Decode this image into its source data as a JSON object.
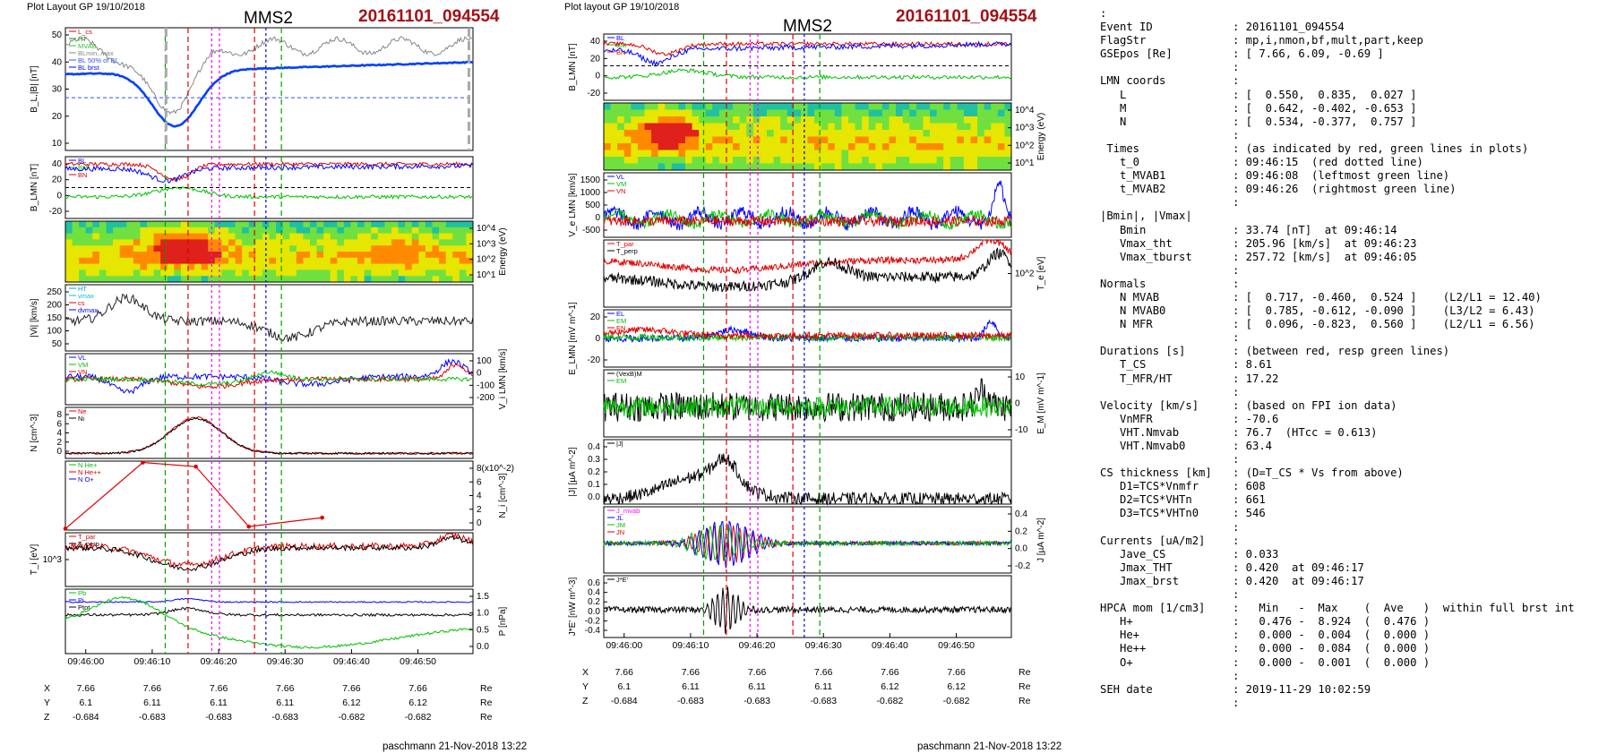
{
  "left": {
    "header_layout": "Plot Layout GP 19/10/2018",
    "spacecraft": "MMS2",
    "event": "20161101_094554",
    "footer": "paschmann 21-Nov-2018 13:22",
    "time_labels": [
      "09:46:00",
      "09:46:10",
      "09:46:20",
      "09:46:30",
      "09:46:40",
      "09:46:50"
    ],
    "ephem": [
      {
        "name": "X",
        "values": [
          "7.66",
          "7.66",
          "7.66",
          "7.66",
          "7.66",
          "7.66"
        ],
        "unit": "Re"
      },
      {
        "name": "Y",
        "values": [
          "6.1",
          "6.11",
          "6.11",
          "6.11",
          "6.12",
          "6.12"
        ],
        "unit": "Re"
      },
      {
        "name": "Z",
        "values": [
          "-0.684",
          "-0.683",
          "-0.683",
          "-0.683",
          "-0.682",
          "-0.682"
        ],
        "unit": "Re"
      }
    ],
    "panels": [
      {
        "id": "b",
        "ylabel": "B_L,|B| [nT]",
        "yticks": [
          "50",
          "40",
          "30",
          "20",
          "10"
        ],
        "legend": [
          "L_cs",
          "HT",
          "MVAB",
          "BLmin..max",
          "BL 50% of BL",
          "BL brst"
        ],
        "legend_colors": [
          "#e00000",
          "#00a000",
          "#30c030",
          "#888888",
          "#3050ff",
          "#0000ff"
        ]
      },
      {
        "id": "blmn",
        "ylabel": "B_LMN [nT]",
        "yticks": [
          "40",
          "20",
          "0",
          "-20"
        ],
        "legend": [
          "BL",
          "BM",
          "BN"
        ],
        "legend_colors": [
          "#0000ff",
          "#00c000",
          "#e00000"
        ]
      },
      {
        "id": "spec",
        "ylabel": "Energy (eV)",
        "yticks": [
          "10^4",
          "10^3",
          "10^2",
          "10^1"
        ]
      },
      {
        "id": "vi",
        "ylabel": "|Vi| [km/s]",
        "yticks": [
          "250",
          "200",
          "150",
          "100",
          "50"
        ],
        "legend": [
          "HT",
          "vmax",
          "cs",
          "dvmax"
        ],
        "legend_colors": [
          "#00a0e0",
          "#00c0e0",
          "#e00000",
          "#0000ff"
        ]
      },
      {
        "id": "vilmn",
        "ylabel": "V_i LMN [km/s]",
        "yticks": [
          "100",
          "0",
          "-100",
          "-200"
        ],
        "legend": [
          "VL",
          "VM",
          "VN"
        ],
        "legend_colors": [
          "#0000ff",
          "#00c000",
          "#e00000"
        ]
      },
      {
        "id": "n",
        "ylabel": "N [cm^-3]",
        "yticks": [
          "8",
          "6",
          "4",
          "2",
          "0"
        ],
        "legend": [
          "Ne",
          "Ni"
        ],
        "legend_colors": [
          "#e00000",
          "#000000"
        ]
      },
      {
        "id": "nhpca",
        "ylabel": "N_i [cm^-3]",
        "yticks": [
          "8(x10^-2)",
          "6",
          "4",
          "2",
          "0"
        ],
        "legend": [
          "N He+",
          "N He++",
          "N O+"
        ],
        "legend_colors": [
          "#00c000",
          "#e00000",
          "#0000ff"
        ]
      },
      {
        "id": "ti",
        "ylabel": "T_i [eV]",
        "yticks": [
          "10^3"
        ],
        "legend": [
          "T_par",
          "T_perp"
        ],
        "legend_colors": [
          "#e00000",
          "#000000"
        ]
      },
      {
        "id": "p",
        "ylabel": "P [nPa]",
        "yticks": [
          "1.5",
          "1.0",
          "0.5",
          "0.0"
        ],
        "legend": [
          "Pb",
          "Pi",
          "Ptot"
        ],
        "legend_colors": [
          "#00c000",
          "#0000ff",
          "#000000"
        ]
      }
    ]
  },
  "middle": {
    "header_layout": "Plot layout GP 19/10/2018",
    "spacecraft": "MMS2",
    "event": "20161101_094554",
    "footer": "paschmann 21-Nov-2018 13:22",
    "time_labels": [
      "09:46:00",
      "09:46:10",
      "09:46:20",
      "09:46:30",
      "09:46:40",
      "09:46:50"
    ],
    "ephem": [
      {
        "name": "X",
        "values": [
          "7.66",
          "7.66",
          "7.66",
          "7.66",
          "7.66",
          "7.66"
        ],
        "unit": "Re"
      },
      {
        "name": "Y",
        "values": [
          "6.1",
          "6.11",
          "6.11",
          "6.11",
          "6.12",
          "6.12"
        ],
        "unit": "Re"
      },
      {
        "name": "Z",
        "values": [
          "-0.684",
          "-0.683",
          "-0.683",
          "-0.683",
          "-0.682",
          "-0.682"
        ],
        "unit": "Re"
      }
    ],
    "panels": [
      {
        "id": "blmn",
        "ylabel": "B_LMN [nT]",
        "yticks": [
          "40",
          "20",
          "0",
          "-20"
        ],
        "legend": [
          "BL",
          "BM",
          "BN"
        ],
        "legend_colors": [
          "#0000ff",
          "#00c000",
          "#e00000"
        ]
      },
      {
        "id": "espec",
        "ylabel": "Energy (eV)",
        "yticks": [
          "10^4",
          "10^3",
          "10^2",
          "10^1"
        ]
      },
      {
        "id": "ve",
        "ylabel": "V_e LMN [km/s]",
        "yticks": [
          "1500",
          "1000",
          "500",
          "0",
          "-500"
        ],
        "legend": [
          "VL",
          "VM",
          "VN"
        ],
        "legend_colors": [
          "#0000ff",
          "#00c000",
          "#e00000"
        ]
      },
      {
        "id": "te",
        "ylabel": "T_e [eV]",
        "yticks": [
          "10^2"
        ],
        "legend": [
          "T_par",
          "T_perp"
        ],
        "legend_colors": [
          "#e00000",
          "#000000"
        ]
      },
      {
        "id": "e",
        "ylabel": "E_LMN [mV m^-1]",
        "yticks": [
          "20",
          "0",
          "-20"
        ],
        "legend": [
          "EL",
          "EM",
          "EN"
        ],
        "legend_colors": [
          "#0000ff",
          "#00c000",
          "#e00000"
        ]
      },
      {
        "id": "em",
        "ylabel": "E_M [mV m^-1]",
        "yticks": [
          "10",
          "0",
          "-10"
        ],
        "legend": [
          "(VexB)M",
          "EM"
        ],
        "legend_colors": [
          "#000000",
          "#00c000"
        ]
      },
      {
        "id": "j",
        "ylabel": "|J| [µA m^-2]",
        "yticks": [
          "0.4",
          "0.3",
          "0.2",
          "0.1",
          "0.0"
        ],
        "legend": [
          "|J|"
        ],
        "legend_colors": [
          "#000000"
        ]
      },
      {
        "id": "jlmn",
        "ylabel": "J [µA m^-2]",
        "yticks": [
          "0.4",
          "0.2",
          "0.0",
          "-0.2"
        ],
        "legend": [
          "J_mvab",
          "JL",
          "JM",
          "JN"
        ],
        "legend_colors": [
          "#ff00ff",
          "#0000ff",
          "#00c000",
          "#e00000"
        ]
      },
      {
        "id": "je",
        "ylabel": "J*E' [nW m^-3]",
        "yticks": [
          "0.6",
          "0.4",
          "0.2",
          "0.0",
          "-0.2",
          "-0.4"
        ],
        "legend": [
          "J*E'"
        ],
        "legend_colors": [
          "#000000"
        ]
      }
    ]
  },
  "info_lines": [
    [
      ":"
    ],
    [
      "Event ID",
      ": 20161101_094554"
    ],
    [
      "FlagStr",
      ": mp,i,nmon,bf,mult,part,keep"
    ],
    [
      "GSEpos [Re]",
      ": [ 7.66, 6.09, -0.69 ]"
    ],
    [
      "",
      ":"
    ],
    [
      "LMN coords",
      ":"
    ],
    [
      "   L",
      ": [  0.550,  0.835,  0.027 ]"
    ],
    [
      "   M",
      ": [  0.642, -0.402, -0.653 ]"
    ],
    [
      "   N",
      ": [  0.534, -0.377,  0.757 ]"
    ],
    [
      "",
      ":"
    ],
    [
      " Times",
      ": (as indicated by red, green lines in plots)"
    ],
    [
      "   t_0",
      ": 09:46:15  (red dotted line)"
    ],
    [
      "   t_MVAB1",
      ": 09:46:08  (leftmost green line)"
    ],
    [
      "   t_MVAB2",
      ": 09:46:26  (rightmost green line)"
    ],
    [
      "",
      ":"
    ],
    [
      "|Bmin|, |Vmax|",
      ""
    ],
    [
      "   Bmin",
      ": 33.74 [nT]  at 09:46:14"
    ],
    [
      "   Vmax_tht",
      ": 205.96 [km/s]  at 09:46:23"
    ],
    [
      "   Vmax_tburst",
      ": 257.72 [km/s]  at 09:46:05"
    ],
    [
      "",
      ":"
    ],
    [
      "Normals",
      ":"
    ],
    [
      "   N MVAB",
      ": [  0.717, -0.460,  0.524 ]    (L2/L1 = 12.40)"
    ],
    [
      "   N MVAB0",
      ": [  0.785, -0.612, -0.090 ]    (L3/L2 = 6.43)"
    ],
    [
      "   N MFR",
      ": [  0.096, -0.823,  0.560 ]    (L2/L1 = 6.56)"
    ],
    [
      "",
      ":"
    ],
    [
      "Durations [s]",
      ": (between red, resp green lines)"
    ],
    [
      "   T_CS",
      ": 8.61"
    ],
    [
      "   T_MFR/HT",
      ": 17.22"
    ],
    [
      "",
      ":"
    ],
    [
      "Velocity [km/s]",
      ": (based on FPI ion data)"
    ],
    [
      "   VnMFR",
      ": -70.6"
    ],
    [
      "   VHT.Nmvab",
      ": 76.7  (HTcc = 0.613)"
    ],
    [
      "   VHT.Nmvab0",
      ": 63.4"
    ],
    [
      "",
      ":"
    ],
    [
      "CS thickness [km]",
      ": (D=T_CS * Vs from above)"
    ],
    [
      "   D1=TCS*Vnmfr",
      ": 608"
    ],
    [
      "   D2=TCS*VHTn",
      ": 661"
    ],
    [
      "   D3=TCS*VHTn0",
      ": 546"
    ],
    [
      "",
      ":"
    ],
    [
      "Currents [uA/m2]",
      ":"
    ],
    [
      "   Jave_CS",
      ": 0.033"
    ],
    [
      "   Jmax_THT",
      ": 0.420  at 09:46:17"
    ],
    [
      "   Jmax_brst",
      ": 0.420  at 09:46:17"
    ],
    [
      "",
      ":"
    ],
    [
      "HPCA mom [1/cm3]",
      ":   Min   -  Max    (  Ave   )  within full brst int"
    ],
    [
      "   H+",
      ":   0.476 -  8.924  (  0.476 )"
    ],
    [
      "   He+",
      ":   0.000 -  0.004  (  0.000 )"
    ],
    [
      "   He++",
      ":   0.000 -  0.084  (  0.000 )"
    ],
    [
      "   O+",
      ":   0.000 -  0.001  (  0.000 )"
    ],
    [
      "",
      ":"
    ],
    [
      "SEH date",
      ": 2019-11-29 10:02:59"
    ],
    [
      "",
      ":"
    ]
  ]
}
